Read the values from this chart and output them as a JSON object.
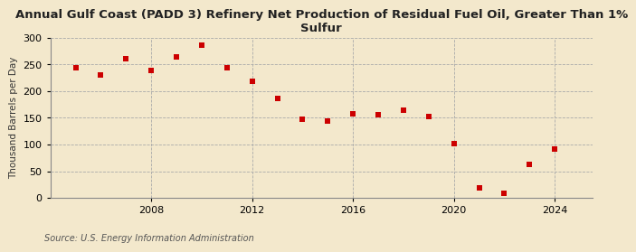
{
  "title": "Annual Gulf Coast (PADD 3) Refinery Net Production of Residual Fuel Oil, Greater Than 1%\nSulfur",
  "ylabel": "Thousand Barrels per Day",
  "source": "Source: U.S. Energy Information Administration",
  "background_color": "#f3e8cc",
  "plot_bg_color": "#f3e8cc",
  "marker_color": "#cc0000",
  "marker": "s",
  "marker_size": 4,
  "years": [
    2005,
    2006,
    2007,
    2008,
    2009,
    2010,
    2011,
    2012,
    2013,
    2014,
    2015,
    2016,
    2017,
    2018,
    2019,
    2020,
    2021,
    2022,
    2023,
    2024
  ],
  "values": [
    243,
    231,
    261,
    238,
    264,
    286,
    244,
    219,
    186,
    147,
    144,
    157,
    155,
    165,
    152,
    101,
    19,
    8,
    63,
    92
  ],
  "ylim": [
    0,
    300
  ],
  "yticks": [
    0,
    50,
    100,
    150,
    200,
    250,
    300
  ],
  "xlim": [
    2004,
    2025.5
  ],
  "xticks": [
    2008,
    2012,
    2016,
    2020,
    2024
  ],
  "grid_color": "#aaaaaa",
  "grid_style": "--",
  "title_fontsize": 9.5,
  "label_fontsize": 7.5,
  "tick_fontsize": 8,
  "source_fontsize": 7
}
